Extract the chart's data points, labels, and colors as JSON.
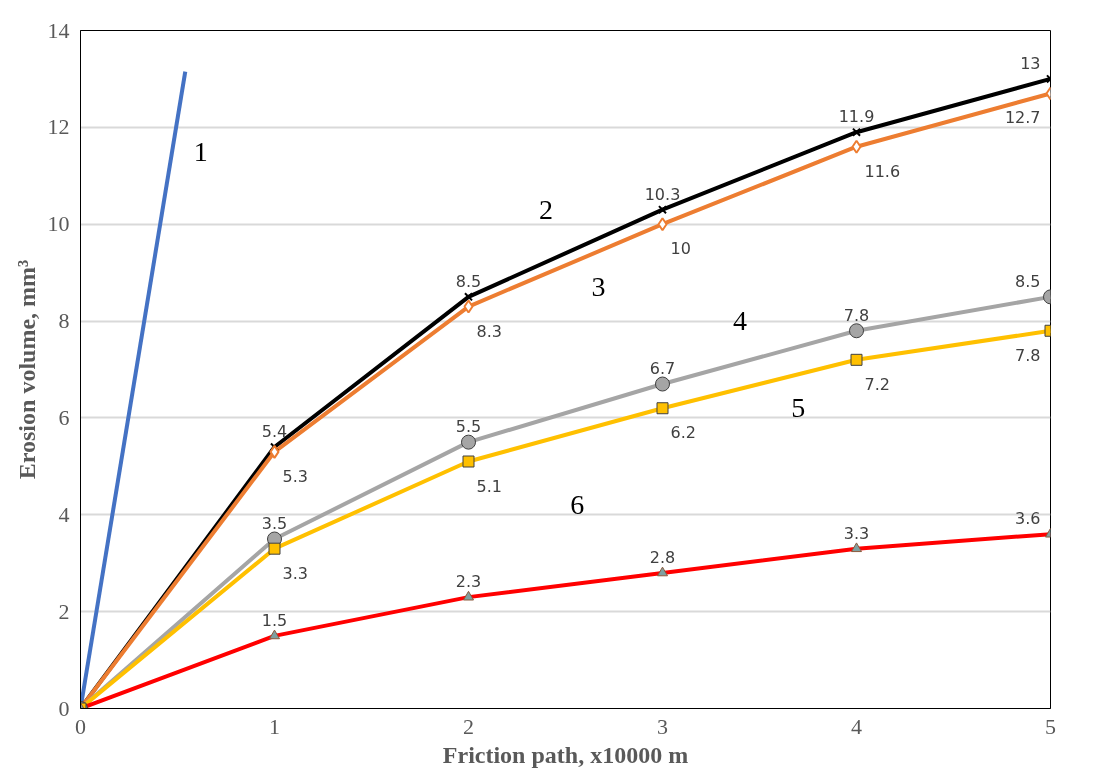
{
  "chart_data": {
    "type": "line",
    "xlabel": "Friction path, x10000 m",
    "ylabel": "Erosion volume, mm³",
    "x": [
      0,
      1,
      2,
      3,
      4,
      5
    ],
    "xlim": [
      0,
      5
    ],
    "xticks": [
      0,
      1,
      2,
      3,
      4,
      5
    ],
    "ylim": [
      0,
      14
    ],
    "yticks": [
      0,
      2,
      4,
      6,
      8,
      10,
      12,
      14
    ],
    "grid": "y",
    "series": [
      {
        "color": "#4472c4",
        "x": [
          0,
          0.54
        ],
        "values": [
          0,
          13.15
        ],
        "marker": "none"
      },
      {
        "color": "#000000",
        "values": [
          0,
          5.4,
          8.5,
          10.3,
          11.9,
          13
        ],
        "marker": "cross",
        "value_labels": [
          null,
          "5.4",
          "8.5",
          "10.3",
          "11.9",
          "13"
        ]
      },
      {
        "color": "#ed7d31",
        "values": [
          0,
          5.3,
          8.3,
          10,
          11.6,
          12.7
        ],
        "marker": "diamond",
        "value_labels": [
          null,
          "5.3",
          "8.3",
          "10",
          "11.6",
          "12.7"
        ]
      },
      {
        "color": "#a5a5a5",
        "values": [
          0,
          3.5,
          5.5,
          6.7,
          7.8,
          8.5
        ],
        "marker": "circle",
        "value_labels": [
          null,
          "3.5",
          "5.5",
          "6.7",
          "7.8",
          "8.5"
        ]
      },
      {
        "color": "#ffc000",
        "values": [
          0,
          3.3,
          5.1,
          6.2,
          7.2,
          7.8
        ],
        "marker": "square",
        "value_labels": [
          null,
          "3.3",
          "5.1",
          "6.2",
          "7.2",
          "7.8"
        ]
      },
      {
        "color": "#ff0000",
        "values": [
          0,
          1.5,
          2.3,
          2.8,
          3.3,
          3.6
        ],
        "marker": "triangle",
        "value_labels": [
          null,
          "1.5",
          "2.3",
          "2.8",
          "3.3",
          "3.6"
        ]
      }
    ],
    "annotations": [
      "1",
      "2",
      "3",
      "4",
      "5",
      "6"
    ]
  }
}
